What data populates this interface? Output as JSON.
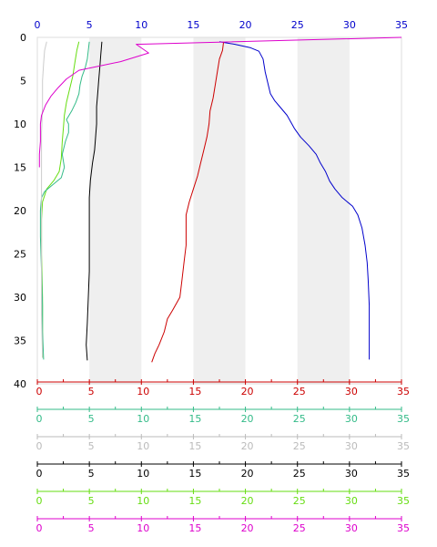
{
  "chart_data": {
    "type": "line",
    "title": "",
    "ylabel": "",
    "y_axis": {
      "range": [
        0,
        40
      ],
      "inverted": true,
      "ticks": [
        0,
        5,
        10,
        15,
        20,
        25,
        30,
        35,
        40
      ],
      "color": "#000000"
    },
    "top_axis": {
      "range": [
        0,
        35
      ],
      "ticks": [
        0,
        5,
        10,
        15,
        20,
        25,
        30,
        35
      ],
      "color": "#0000cc"
    },
    "bottom_axes": [
      {
        "color": "#cc0000",
        "range": [
          0,
          35
        ],
        "ticks": [
          0,
          5,
          10,
          15,
          20,
          25,
          30,
          35
        ]
      },
      {
        "color": "#33bb88",
        "range": [
          0,
          35
        ],
        "ticks": [
          0,
          5,
          10,
          15,
          20,
          25,
          30,
          35
        ]
      },
      {
        "color": "#bbbbbb",
        "range": [
          0,
          35
        ],
        "ticks": [
          0,
          5,
          10,
          15,
          20,
          25,
          30,
          35
        ]
      },
      {
        "color": "#000000",
        "range": [
          0,
          35
        ],
        "ticks": [
          0,
          5,
          10,
          15,
          20,
          25,
          30,
          35
        ]
      },
      {
        "color": "#66dd11",
        "range": [
          0,
          35
        ],
        "ticks": [
          0,
          5,
          10,
          15,
          20,
          25,
          30,
          35
        ]
      },
      {
        "color": "#dd00cc",
        "range": [
          0,
          35
        ],
        "ticks": [
          0,
          5,
          10,
          15,
          20,
          25,
          30,
          35
        ]
      }
    ],
    "bands": [
      [
        5,
        10
      ],
      [
        15,
        20
      ],
      [
        25,
        30
      ]
    ],
    "band_color": "#efefef",
    "series": [
      {
        "color": "#0000cc",
        "points": [
          [
            17.5,
            0.5
          ],
          [
            19,
            0.8
          ],
          [
            20.5,
            1.2
          ],
          [
            21.3,
            1.6
          ],
          [
            21.7,
            2.5
          ],
          [
            21.9,
            4.0
          ],
          [
            22.2,
            5.5
          ],
          [
            22.4,
            6.5
          ],
          [
            22.8,
            7.3
          ],
          [
            23.3,
            8.0
          ],
          [
            24.0,
            9.0
          ],
          [
            24.7,
            10.5
          ],
          [
            25.3,
            11.5
          ],
          [
            26.1,
            12.5
          ],
          [
            26.8,
            13.5
          ],
          [
            27.2,
            14.5
          ],
          [
            27.7,
            15.5
          ],
          [
            28.1,
            16.6
          ],
          [
            28.6,
            17.5
          ],
          [
            29.3,
            18.5
          ],
          [
            30.3,
            19.5
          ],
          [
            30.8,
            20.5
          ],
          [
            31.2,
            22.0
          ],
          [
            31.5,
            24.0
          ],
          [
            31.7,
            26.0
          ],
          [
            31.8,
            28.0
          ],
          [
            31.9,
            31.0
          ],
          [
            31.9,
            34.0
          ],
          [
            31.9,
            37.2
          ]
        ]
      },
      {
        "color": "#cc0000",
        "points": [
          [
            17.9,
            0.5
          ],
          [
            17.8,
            1.5
          ],
          [
            17.5,
            2.5
          ],
          [
            17.3,
            4.0
          ],
          [
            17.1,
            5.5
          ],
          [
            16.9,
            7.0
          ],
          [
            16.6,
            8.5
          ],
          [
            16.5,
            10.0
          ],
          [
            16.3,
            11.5
          ],
          [
            16.0,
            13.0
          ],
          [
            15.7,
            14.5
          ],
          [
            15.4,
            16.0
          ],
          [
            15.0,
            17.5
          ],
          [
            14.6,
            19.0
          ],
          [
            14.3,
            20.5
          ],
          [
            14.3,
            22.0
          ],
          [
            14.3,
            24.0
          ],
          [
            14.1,
            26.0
          ],
          [
            13.9,
            28.0
          ],
          [
            13.7,
            30.0
          ],
          [
            13.0,
            31.5
          ],
          [
            12.5,
            32.5
          ],
          [
            12.2,
            34.0
          ],
          [
            11.7,
            35.5
          ],
          [
            11.3,
            36.5
          ],
          [
            11.0,
            37.5
          ]
        ]
      },
      {
        "color": "#000000",
        "points": [
          [
            6.2,
            0.5
          ],
          [
            6.1,
            2.0
          ],
          [
            6.0,
            3.5
          ],
          [
            5.9,
            5.0
          ],
          [
            5.8,
            6.5
          ],
          [
            5.7,
            8.0
          ],
          [
            5.7,
            10.0
          ],
          [
            5.6,
            11.5
          ],
          [
            5.5,
            13.0
          ],
          [
            5.3,
            14.5
          ],
          [
            5.1,
            16.5
          ],
          [
            5.0,
            18.5
          ],
          [
            5.0,
            21.0
          ],
          [
            5.0,
            24.0
          ],
          [
            5.0,
            27.0
          ],
          [
            4.9,
            30.0
          ],
          [
            4.8,
            33.0
          ],
          [
            4.7,
            35.5
          ],
          [
            4.8,
            37.3
          ]
        ]
      },
      {
        "color": "#66dd11",
        "points": [
          [
            4.0,
            0.5
          ],
          [
            3.8,
            1.5
          ],
          [
            3.6,
            3.0
          ],
          [
            3.4,
            4.5
          ],
          [
            3.1,
            6.0
          ],
          [
            2.8,
            7.5
          ],
          [
            2.6,
            9.0
          ],
          [
            2.5,
            10.5
          ],
          [
            2.4,
            12.0
          ],
          [
            2.3,
            14.0
          ],
          [
            2.1,
            15.5
          ],
          [
            1.6,
            16.5
          ],
          [
            0.9,
            17.5
          ],
          [
            0.5,
            19.0
          ],
          [
            0.4,
            21.0
          ],
          [
            0.4,
            25.0
          ],
          [
            0.5,
            30.0
          ],
          [
            0.5,
            34.0
          ],
          [
            0.5,
            37.0
          ]
        ]
      },
      {
        "color": "#33bb88",
        "points": [
          [
            5.0,
            0.5
          ],
          [
            4.9,
            1.5
          ],
          [
            4.8,
            2.5
          ],
          [
            4.6,
            3.5
          ],
          [
            4.3,
            4.5
          ],
          [
            4.1,
            5.5
          ],
          [
            4.0,
            6.5
          ],
          [
            3.7,
            7.5
          ],
          [
            3.3,
            8.5
          ],
          [
            2.8,
            9.5
          ],
          [
            3.0,
            10.0
          ],
          [
            3.0,
            11.0
          ],
          [
            2.7,
            12.0
          ],
          [
            2.4,
            13.5
          ],
          [
            2.6,
            15.0
          ],
          [
            2.3,
            16.2
          ],
          [
            1.5,
            17.0
          ],
          [
            0.7,
            17.8
          ],
          [
            0.4,
            18.5
          ],
          [
            0.3,
            20.0
          ],
          [
            0.3,
            23.0
          ],
          [
            0.4,
            27.0
          ],
          [
            0.5,
            31.0
          ],
          [
            0.5,
            34.0
          ],
          [
            0.6,
            37.2
          ]
        ]
      },
      {
        "color": "#cccccc",
        "points": [
          [
            0.9,
            0.5
          ],
          [
            0.7,
            1.5
          ],
          [
            0.6,
            3.0
          ],
          [
            0.5,
            5.0
          ],
          [
            0.5,
            8.0
          ],
          [
            0.4,
            11.0
          ],
          [
            0.4,
            14.0
          ],
          [
            0.4,
            18.0
          ],
          [
            0.4,
            22.0
          ],
          [
            0.4,
            27.0
          ],
          [
            0.4,
            32.0
          ],
          [
            0.5,
            37.0
          ]
        ]
      },
      {
        "color": "#dd00cc",
        "points": [
          [
            35.0,
            0.0
          ],
          [
            9.5,
            0.8
          ],
          [
            10.7,
            1.8
          ],
          [
            8.0,
            2.8
          ],
          [
            4.0,
            3.8
          ],
          [
            2.8,
            4.8
          ],
          [
            2.0,
            5.8
          ],
          [
            1.3,
            6.8
          ],
          [
            0.8,
            7.8
          ],
          [
            0.4,
            9.0
          ],
          [
            0.3,
            10.0
          ],
          [
            0.3,
            12.0
          ],
          [
            0.2,
            13.5
          ],
          [
            0.2,
            15.0
          ]
        ]
      }
    ]
  }
}
